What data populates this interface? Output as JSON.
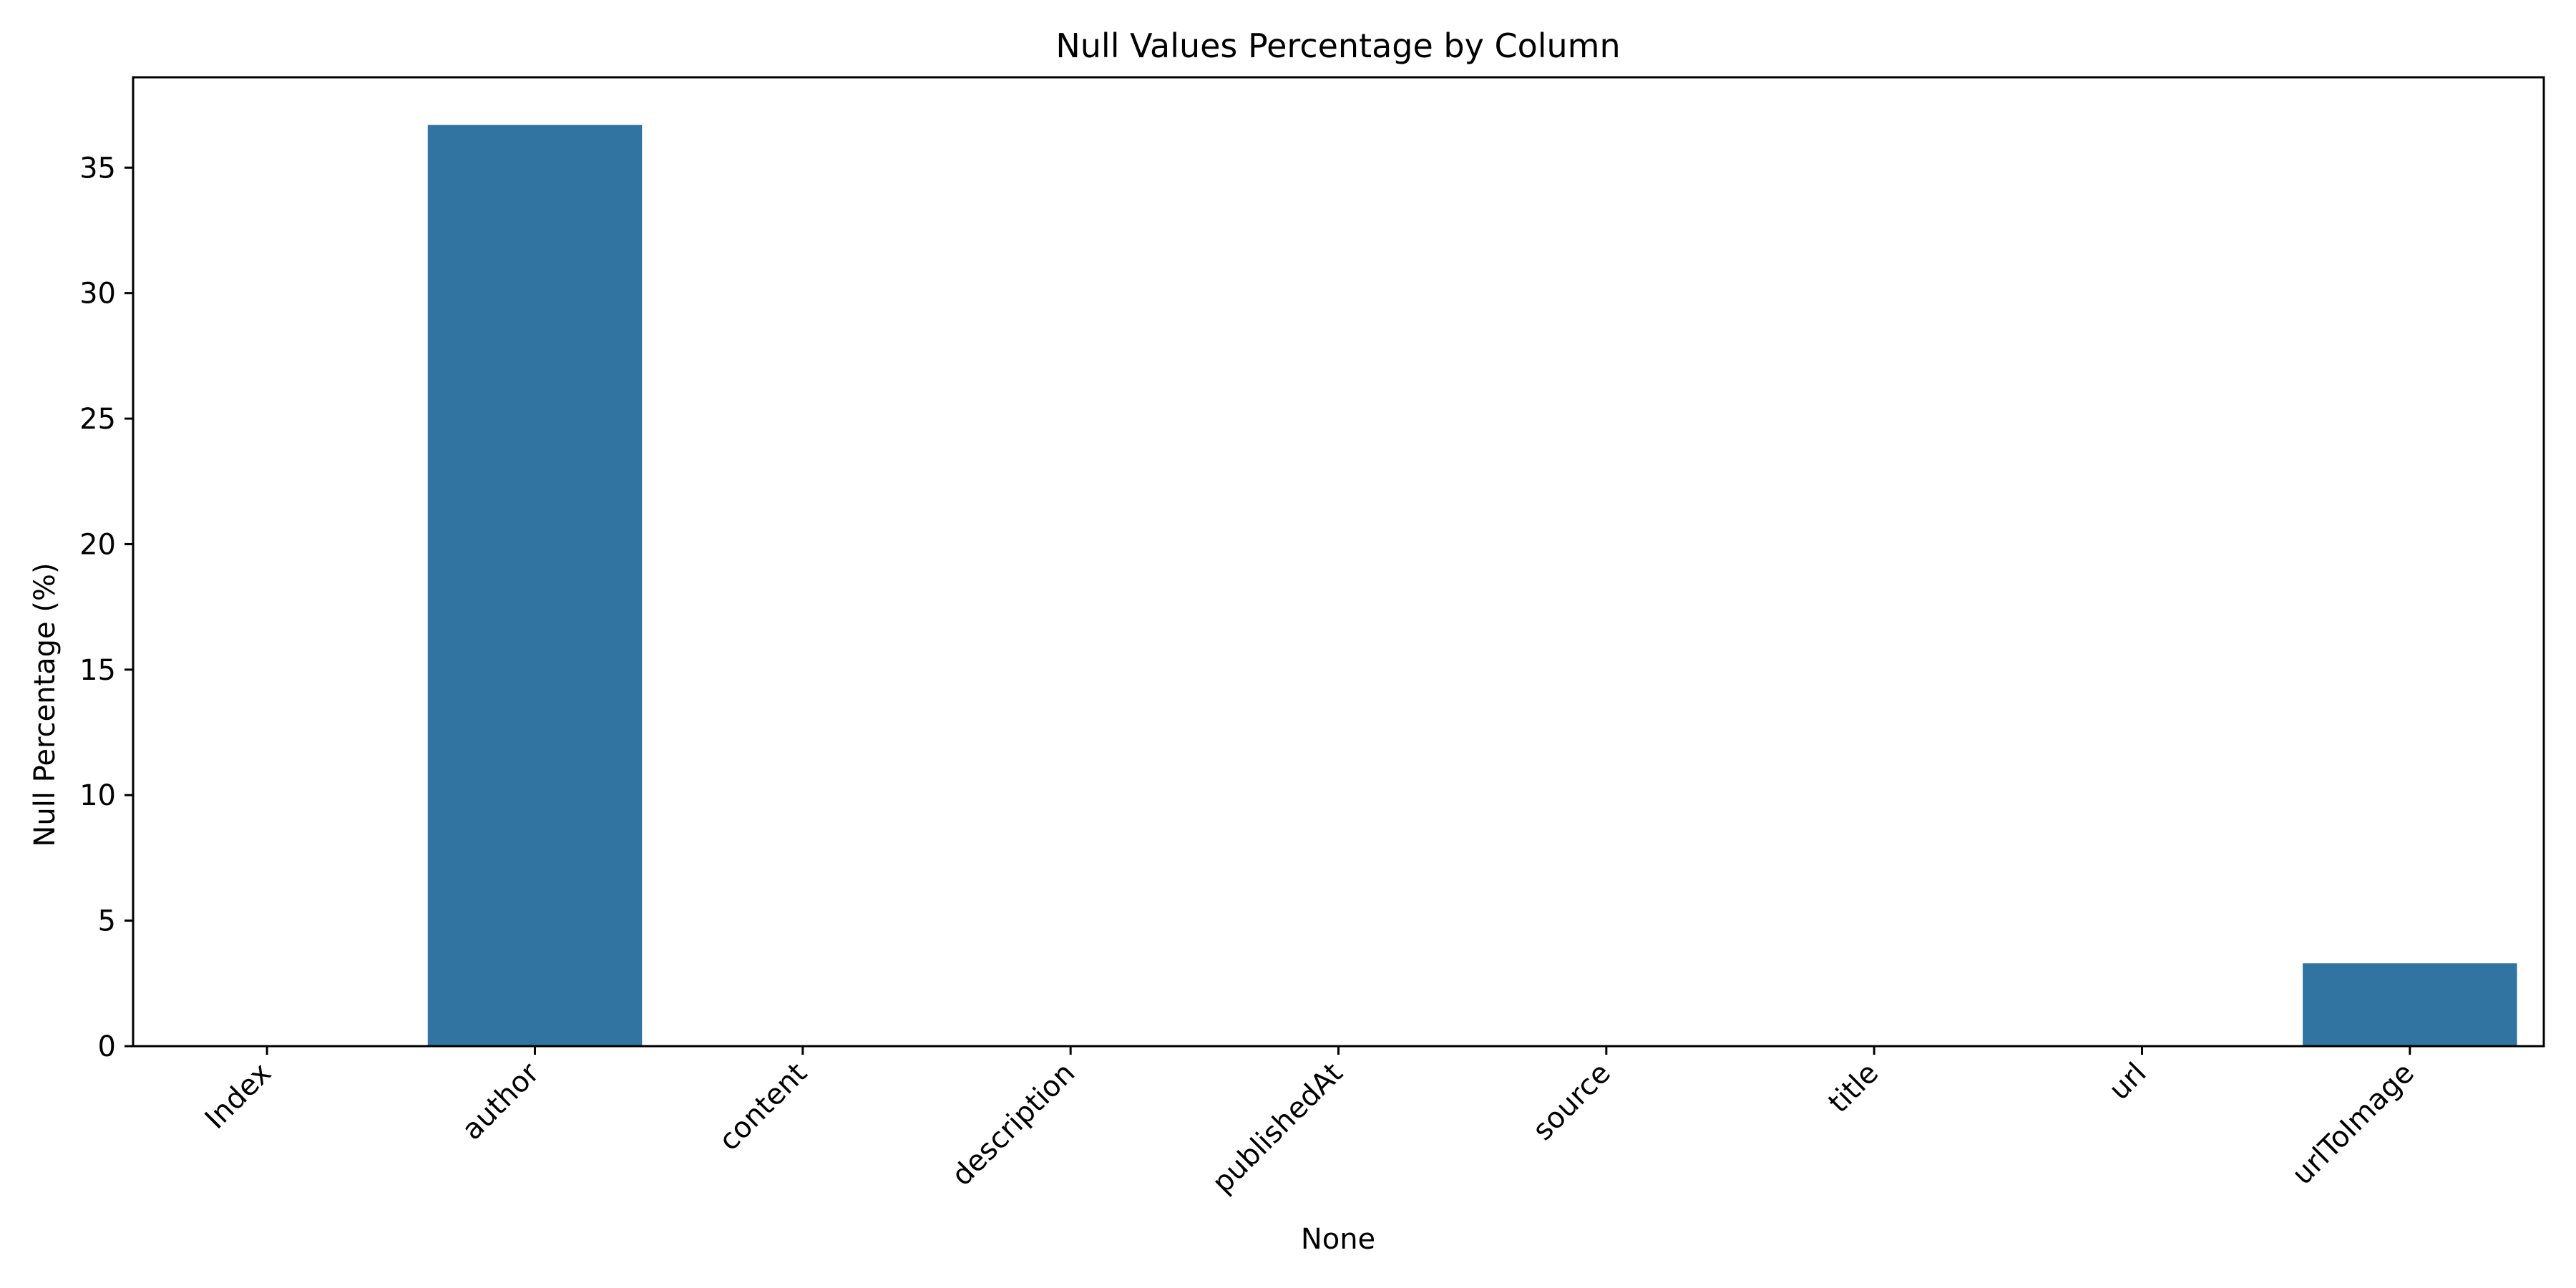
{
  "chart_data": {
    "type": "bar",
    "title": "Null Values Percentage by Column",
    "xlabel": "None",
    "ylabel": "Null Percentage (%)",
    "categories": [
      "Index",
      "author",
      "content",
      "description",
      "publishedAt",
      "source",
      "title",
      "url",
      "urlToImage"
    ],
    "values": [
      0,
      36.7,
      0,
      0,
      0,
      0,
      0,
      0,
      3.3
    ],
    "ylim": [
      0,
      38.6
    ],
    "yticks": [
      0,
      5,
      10,
      15,
      20,
      25,
      30,
      35
    ],
    "grid": false,
    "legend": "none",
    "bar_color": "#3274a1"
  }
}
